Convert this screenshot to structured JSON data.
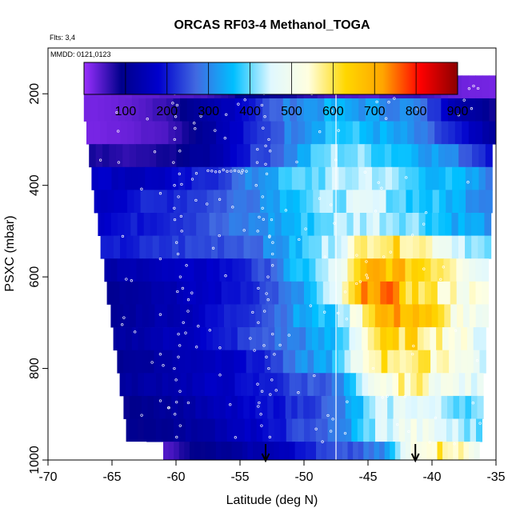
{
  "chart_data": {
    "type": "heatmap",
    "title": "ORCAS RF03-4 Methanol_TOGA",
    "annotations": {
      "flights": "Flts: 3,4",
      "dates": "MMDD: 0121,0123"
    },
    "xlabel": "Latitude (deg N)",
    "ylabel": "PSXC (mbar)",
    "xlim": [
      -70,
      -35
    ],
    "ylim": [
      1000,
      100
    ],
    "xticks": [
      "-70",
      "-65",
      "-60",
      "-55",
      "-50",
      "-45",
      "-40",
      "-35"
    ],
    "yticks": [
      "200",
      "400",
      "600",
      "800",
      "1000"
    ],
    "colorbar": {
      "range": [
        0,
        900
      ],
      "ticks": [
        "100",
        "200",
        "300",
        "400",
        "500",
        "600",
        "700",
        "800",
        "900"
      ],
      "colors": [
        "#9b30ff",
        "#00008b",
        "#0000cd",
        "#4169e1",
        "#00bfff",
        "#e0f8ff",
        "#ffffe0",
        "#ffd700",
        "#ffa500",
        "#ff0000",
        "#8b0000"
      ]
    },
    "vertical_line_lat": -47.5,
    "arrow_lats": [
      -53,
      -41.3
    ],
    "pressure_levels": [
      185,
      235,
      285,
      335,
      385,
      435,
      485,
      535,
      585,
      635,
      685,
      735,
      785,
      835,
      885,
      935,
      985
    ],
    "lat_start": [
      -67.2,
      -67.2,
      -67.0,
      -66.8,
      -66.6,
      -66.4,
      -66.1,
      -65.9,
      -65.6,
      -65.4,
      -65.1,
      -64.9,
      -64.6,
      -64.4,
      -64.1,
      -63.9,
      -61.0
    ],
    "lat_end": [
      -35.0,
      -35.0,
      -35.0,
      -35.3,
      -35.3,
      -35.3,
      -35.4,
      -35.4,
      -35.6,
      -35.6,
      -35.6,
      -35.8,
      -35.8,
      -36.0,
      -36.0,
      -36.1,
      -36.3
    ],
    "methanol_ppt": [
      [
        20,
        30,
        40,
        50,
        100,
        80,
        50,
        40,
        60,
        30,
        20
      ],
      [
        20,
        30,
        60,
        120,
        200,
        300,
        340,
        320,
        300,
        150,
        80
      ],
      [
        20,
        30,
        50,
        120,
        200,
        300,
        380,
        350,
        300,
        200,
        100
      ],
      [
        80,
        60,
        80,
        120,
        220,
        300,
        420,
        400,
        360,
        300,
        200
      ],
      [
        180,
        150,
        170,
        220,
        300,
        380,
        420,
        450,
        380,
        350,
        300
      ],
      [
        150,
        200,
        220,
        250,
        300,
        380,
        420,
        450,
        380,
        350,
        300
      ],
      [
        180,
        200,
        230,
        260,
        300,
        350,
        420,
        450,
        420,
        350,
        320
      ],
      [
        190,
        210,
        230,
        250,
        280,
        350,
        450,
        620,
        600,
        480,
        380
      ],
      [
        120,
        150,
        160,
        180,
        230,
        350,
        450,
        700,
        650,
        600,
        450
      ],
      [
        100,
        130,
        150,
        180,
        230,
        300,
        450,
        780,
        620,
        550,
        500
      ],
      [
        100,
        130,
        150,
        200,
        250,
        330,
        380,
        680,
        700,
        550,
        450
      ],
      [
        110,
        140,
        160,
        200,
        260,
        300,
        350,
        600,
        620,
        550,
        450
      ],
      [
        100,
        120,
        150,
        170,
        210,
        300,
        360,
        600,
        580,
        560,
        450
      ],
      [
        110,
        130,
        150,
        170,
        200,
        250,
        280,
        480,
        580,
        500,
        450
      ],
      [
        90,
        110,
        130,
        160,
        190,
        230,
        280,
        420,
        480,
        420,
        400
      ],
      [
        90,
        100,
        120,
        150,
        180,
        250,
        280,
        430,
        500,
        450,
        400
      ],
      [
        40,
        90,
        110,
        140,
        170,
        230,
        250,
        300,
        550,
        600,
        480
      ]
    ]
  }
}
